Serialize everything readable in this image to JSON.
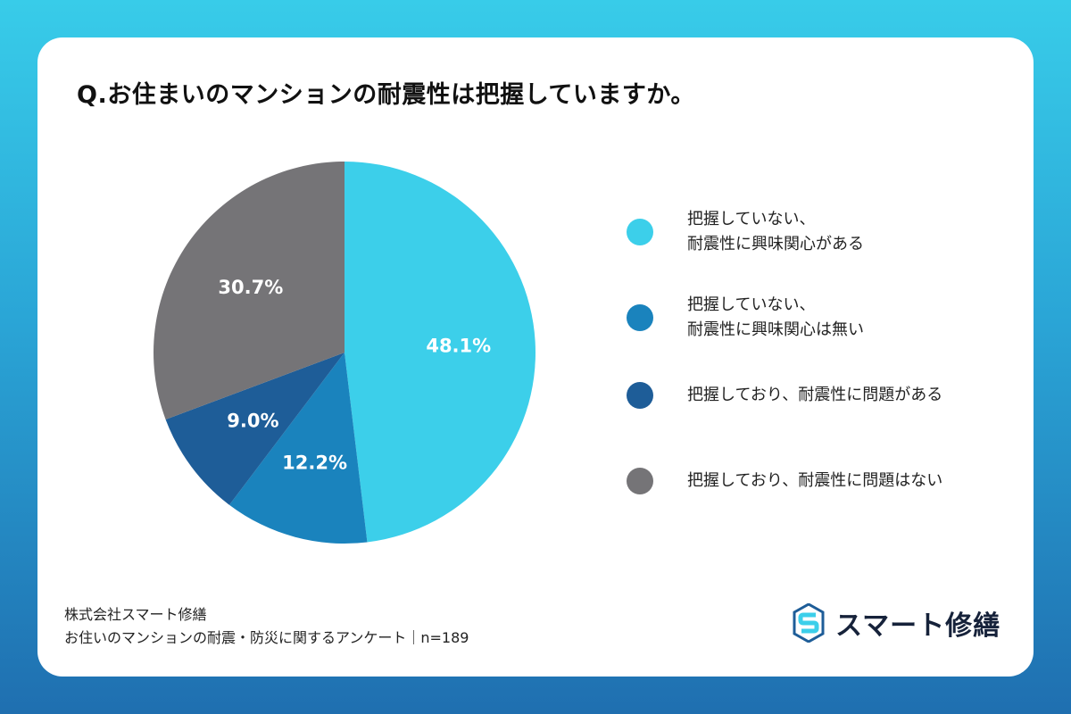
{
  "title": "Q.お住まいのマンションの耐震性は把握していますか。",
  "chart_data": {
    "type": "pie",
    "title": "Q.お住まいのマンションの耐震性は把握していますか。",
    "start": "12 o'clock",
    "direction": "clockwise",
    "slices": [
      {
        "label": "把握していない、\n耐震性に興味関心がある",
        "value": 48.1,
        "display": "48.1%",
        "color": "#3ccfea"
      },
      {
        "label": "把握していない、\n耐震性に興味関心は無い",
        "value": 12.2,
        "display": "12.2%",
        "color": "#1a83bd"
      },
      {
        "label": "把握しており、耐震性に問題がある",
        "value": 9.0,
        "display": "9.0%",
        "color": "#1e5d98"
      },
      {
        "label": "把握しており、耐震性に問題はない",
        "value": 30.7,
        "display": "30.7%",
        "color": "#757477"
      }
    ]
  },
  "footer": {
    "company": "株式会社スマート修繕",
    "survey": "お住いのマンションの耐震・防災に関するアンケート｜n=189"
  },
  "logo": {
    "text": "スマート修繕",
    "icon": "s-hexagon-logo-icon",
    "color_light": "#3ccfea",
    "color_dark": "#1e5d98"
  }
}
